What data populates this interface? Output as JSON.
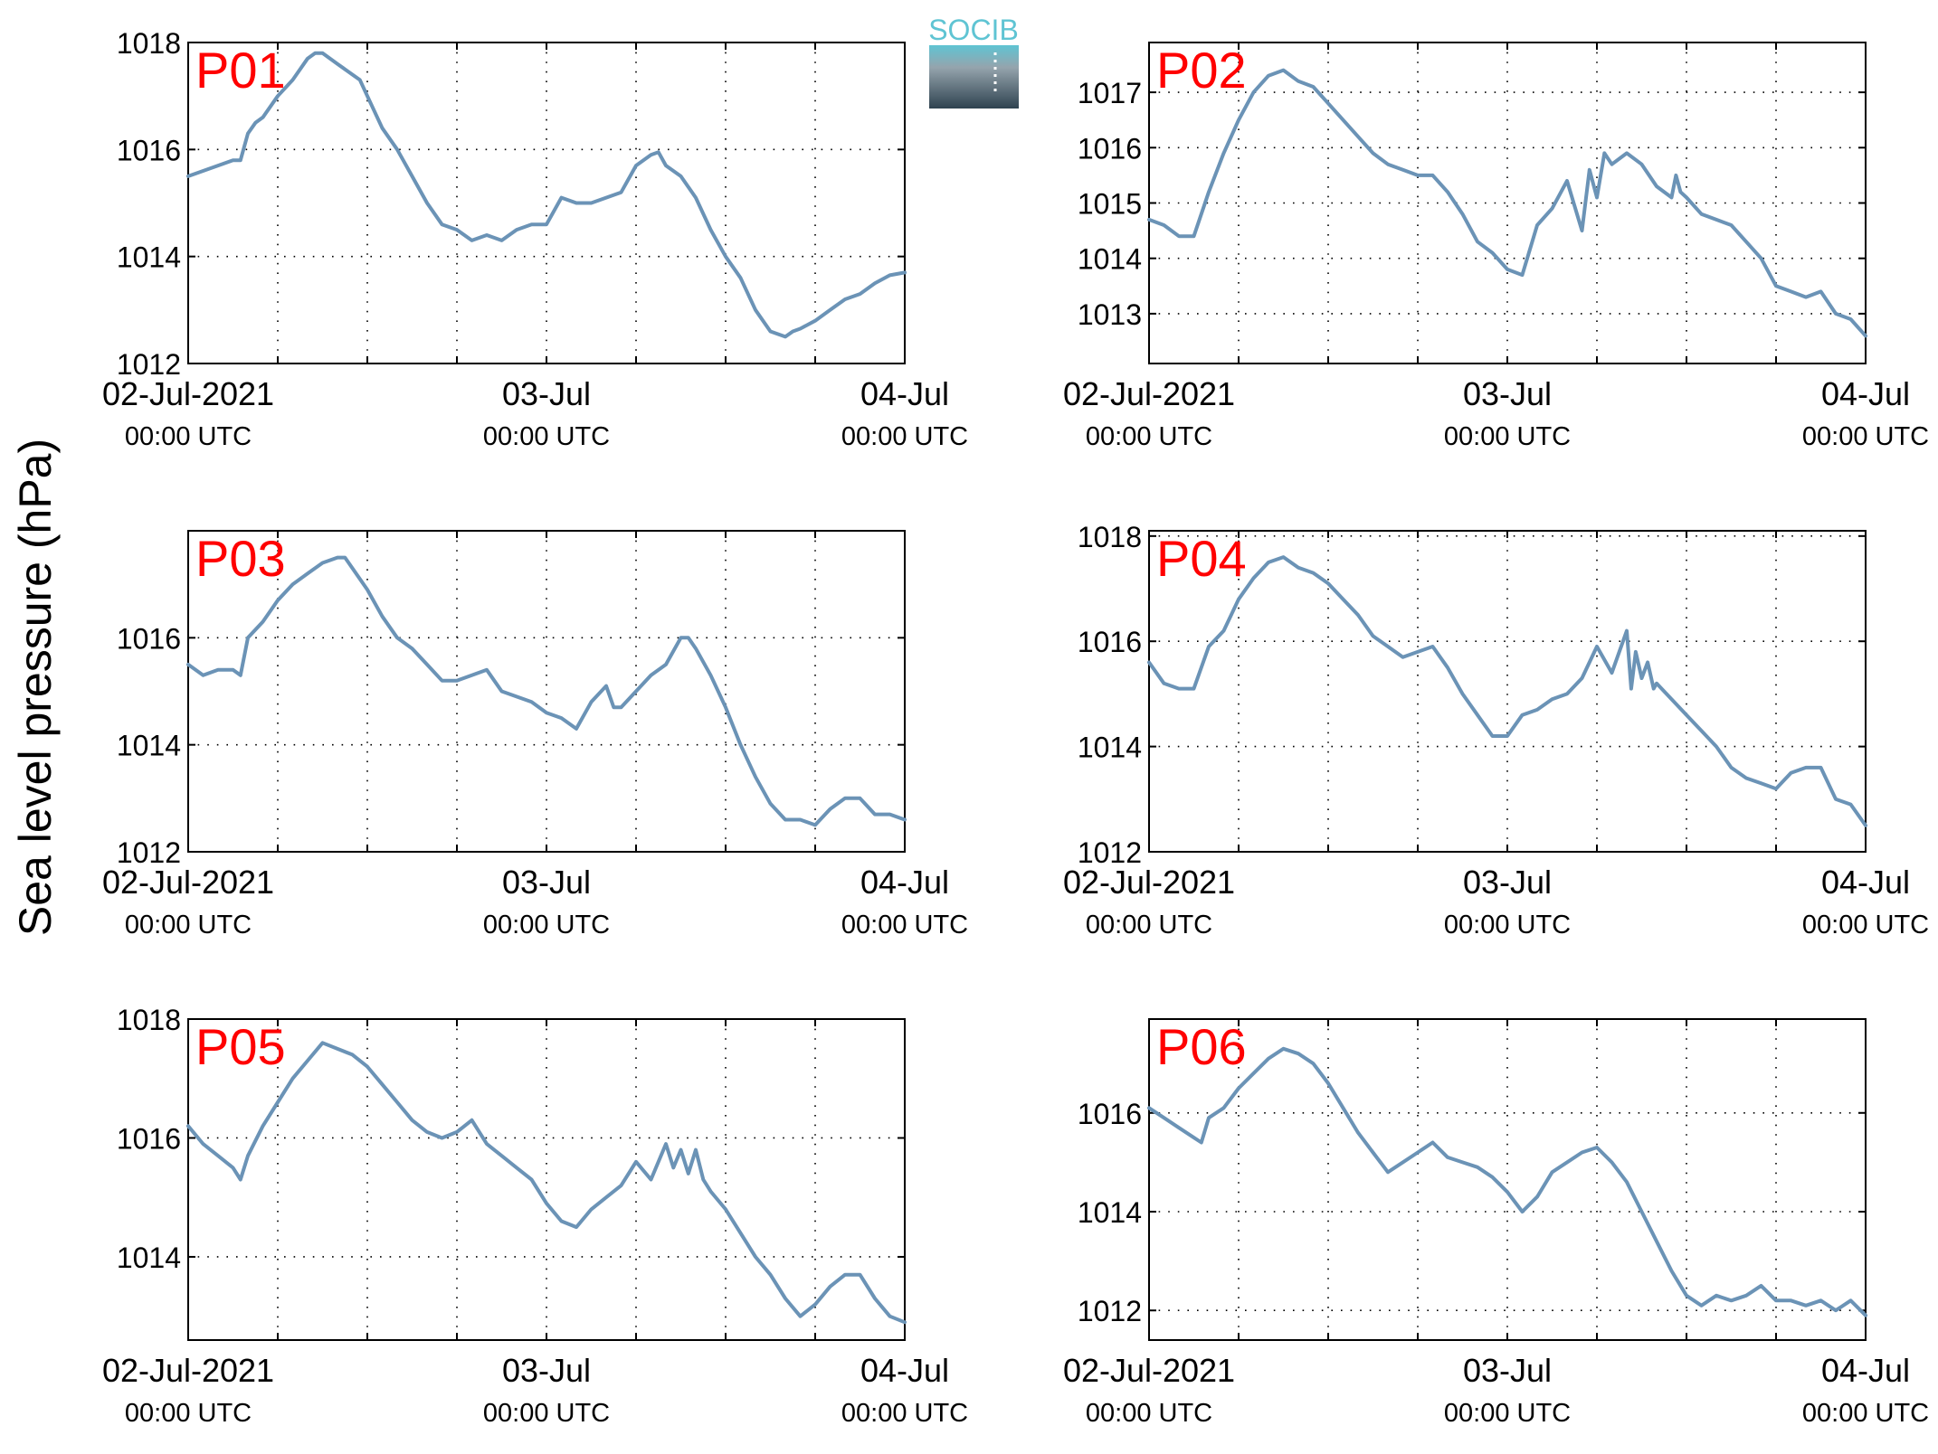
{
  "figure": {
    "ylabel": "Sea level pressure (hPa)",
    "logo_text": "SOCIB"
  },
  "colors": {
    "line": "#6b93b6",
    "panel_label": "#ff0000",
    "logo_top": "#5fc4d3",
    "logo_bottom": "#2f4350"
  },
  "chart_data": [
    {
      "type": "line",
      "panel": "P01",
      "x_unit": "hours since 02-Jul-2021 00:00 UTC",
      "xlim": [
        0,
        48
      ],
      "ylim": [
        1012,
        1018
      ],
      "yticks": [
        1012,
        1014,
        1016,
        1018
      ],
      "xticks": [
        0,
        24,
        48
      ],
      "xtick_labels": [
        [
          "02-Jul-2021",
          "00:00 UTC"
        ],
        [
          "03-Jul",
          "00:00 UTC"
        ],
        [
          "04-Jul",
          "00:00 UTC"
        ]
      ],
      "x": [
        0,
        1,
        2,
        3,
        3.5,
        4,
        4.5,
        5,
        6,
        7,
        8,
        8.5,
        9,
        10,
        11,
        11.5,
        12,
        13,
        14,
        15,
        16,
        17,
        18,
        19,
        20,
        21,
        22,
        23,
        24,
        25,
        26,
        27,
        28,
        29,
        30,
        31,
        31.5,
        32,
        33,
        34,
        35,
        36,
        37,
        38,
        39,
        40,
        40.5,
        41,
        42,
        43,
        44,
        45,
        46,
        47,
        48
      ],
      "y": [
        1015.5,
        1015.6,
        1015.7,
        1015.8,
        1015.8,
        1016.3,
        1016.5,
        1016.6,
        1017.0,
        1017.3,
        1017.7,
        1017.8,
        1017.8,
        1017.6,
        1017.4,
        1017.3,
        1017.0,
        1016.4,
        1016.0,
        1015.5,
        1015.0,
        1014.6,
        1014.5,
        1014.3,
        1014.4,
        1014.3,
        1014.5,
        1014.6,
        1014.6,
        1015.1,
        1015.0,
        1015.0,
        1015.1,
        1015.2,
        1015.7,
        1015.9,
        1015.95,
        1015.7,
        1015.5,
        1015.1,
        1014.5,
        1014.0,
        1013.6,
        1013.0,
        1012.6,
        1012.5,
        1012.6,
        1012.65,
        1012.8,
        1013.0,
        1013.2,
        1013.3,
        1013.5,
        1013.65,
        1013.7
      ]
    },
    {
      "type": "line",
      "panel": "P02",
      "x_unit": "hours since 02-Jul-2021 00:00 UTC",
      "xlim": [
        0,
        48
      ],
      "ylim": [
        1012.1,
        1017.9
      ],
      "yticks": [
        1013,
        1014,
        1015,
        1016,
        1017
      ],
      "xticks": [
        0,
        24,
        48
      ],
      "xtick_labels": [
        [
          "02-Jul-2021",
          "00:00 UTC"
        ],
        [
          "03-Jul",
          "00:00 UTC"
        ],
        [
          "04-Jul",
          "00:00 UTC"
        ]
      ],
      "x": [
        0,
        1,
        2,
        3,
        4,
        5,
        6,
        7,
        8,
        9,
        10,
        11,
        12,
        13,
        14,
        15,
        16,
        17,
        18,
        19,
        20,
        21,
        22,
        23,
        24,
        25,
        26,
        27,
        28,
        29,
        29.5,
        30,
        30.5,
        31,
        31.5,
        32,
        33,
        34,
        35,
        35.3,
        35.6,
        36,
        37,
        38,
        39,
        40,
        41,
        42,
        43,
        44,
        45,
        46,
        47,
        48
      ],
      "y": [
        1014.7,
        1014.6,
        1014.4,
        1014.4,
        1015.2,
        1015.9,
        1016.5,
        1017.0,
        1017.3,
        1017.4,
        1017.2,
        1017.1,
        1016.8,
        1016.5,
        1016.2,
        1015.9,
        1015.7,
        1015.6,
        1015.5,
        1015.5,
        1015.2,
        1014.8,
        1014.3,
        1014.1,
        1013.8,
        1013.7,
        1014.6,
        1014.9,
        1015.4,
        1014.5,
        1015.6,
        1015.1,
        1015.9,
        1015.7,
        1015.8,
        1015.9,
        1015.7,
        1015.3,
        1015.1,
        1015.5,
        1015.2,
        1015.1,
        1014.8,
        1014.7,
        1014.6,
        1014.3,
        1014.0,
        1013.5,
        1013.4,
        1013.3,
        1013.4,
        1013.0,
        1012.9,
        1012.6
      ]
    },
    {
      "type": "line",
      "panel": "P03",
      "x_unit": "hours since 02-Jul-2021 00:00 UTC",
      "xlim": [
        0,
        48
      ],
      "ylim": [
        1012,
        1018
      ],
      "yticks": [
        1012,
        1014,
        1016
      ],
      "xticks": [
        0,
        24,
        48
      ],
      "xtick_labels": [
        [
          "02-Jul-2021",
          "00:00 UTC"
        ],
        [
          "03-Jul",
          "00:00 UTC"
        ],
        [
          "04-Jul",
          "00:00 UTC"
        ]
      ],
      "x": [
        0,
        1,
        2,
        3,
        3.5,
        4,
        5,
        6,
        7,
        8,
        9,
        10,
        10.5,
        11,
        12,
        13,
        14,
        15,
        16,
        17,
        18,
        19,
        20,
        21,
        22,
        23,
        24,
        25,
        26,
        27,
        28,
        28.5,
        29,
        30,
        31,
        32,
        33,
        33.5,
        34,
        35,
        36,
        37,
        38,
        39,
        40,
        41,
        42,
        43,
        44,
        45,
        46,
        47,
        48
      ],
      "y": [
        1015.5,
        1015.3,
        1015.4,
        1015.4,
        1015.3,
        1016.0,
        1016.3,
        1016.7,
        1017.0,
        1017.2,
        1017.4,
        1017.5,
        1017.5,
        1017.3,
        1016.9,
        1016.4,
        1016.0,
        1015.8,
        1015.5,
        1015.2,
        1015.2,
        1015.3,
        1015.4,
        1015.0,
        1014.9,
        1014.8,
        1014.6,
        1014.5,
        1014.3,
        1014.8,
        1015.1,
        1014.7,
        1014.7,
        1015.0,
        1015.3,
        1015.5,
        1016.0,
        1016.0,
        1015.8,
        1015.3,
        1014.7,
        1014.0,
        1013.4,
        1012.9,
        1012.6,
        1012.6,
        1012.5,
        1012.8,
        1013.0,
        1013.0,
        1012.7,
        1012.7,
        1012.6
      ]
    },
    {
      "type": "line",
      "panel": "P04",
      "x_unit": "hours since 02-Jul-2021 00:00 UTC",
      "xlim": [
        0,
        48
      ],
      "ylim": [
        1012,
        1018.1
      ],
      "yticks": [
        1012,
        1014,
        1016,
        1018
      ],
      "xticks": [
        0,
        24,
        48
      ],
      "xtick_labels": [
        [
          "02-Jul-2021",
          "00:00 UTC"
        ],
        [
          "03-Jul",
          "00:00 UTC"
        ],
        [
          "04-Jul",
          "00:00 UTC"
        ]
      ],
      "x": [
        0,
        1,
        2,
        3,
        4,
        5,
        6,
        7,
        8,
        9,
        10,
        11,
        12,
        13,
        14,
        15,
        16,
        17,
        18,
        19,
        20,
        21,
        22,
        23,
        24,
        25,
        26,
        27,
        28,
        29,
        30,
        31,
        32,
        32.3,
        32.6,
        33,
        33.4,
        33.8,
        34,
        35,
        36,
        37,
        38,
        39,
        40,
        41,
        42,
        43,
        44,
        45,
        46,
        47,
        48
      ],
      "y": [
        1015.6,
        1015.2,
        1015.1,
        1015.1,
        1015.9,
        1016.2,
        1016.8,
        1017.2,
        1017.5,
        1017.6,
        1017.4,
        1017.3,
        1017.1,
        1016.8,
        1016.5,
        1016.1,
        1015.9,
        1015.7,
        1015.8,
        1015.9,
        1015.5,
        1015.0,
        1014.6,
        1014.2,
        1014.2,
        1014.6,
        1014.7,
        1014.9,
        1015.0,
        1015.3,
        1015.9,
        1015.4,
        1016.2,
        1015.1,
        1015.8,
        1015.3,
        1015.6,
        1015.1,
        1015.2,
        1014.9,
        1014.6,
        1014.3,
        1014.0,
        1013.6,
        1013.4,
        1013.3,
        1013.2,
        1013.5,
        1013.6,
        1013.6,
        1013.0,
        1012.9,
        1012.5
      ]
    },
    {
      "type": "line",
      "panel": "P05",
      "x_unit": "hours since 02-Jul-2021 00:00 UTC",
      "xlim": [
        0,
        48
      ],
      "ylim": [
        1012.6,
        1018
      ],
      "yticks": [
        1014,
        1016,
        1018
      ],
      "xticks": [
        0,
        24,
        48
      ],
      "xtick_labels": [
        [
          "02-Jul-2021",
          "00:00 UTC"
        ],
        [
          "03-Jul",
          "00:00 UTC"
        ],
        [
          "04-Jul",
          "00:00 UTC"
        ]
      ],
      "x": [
        0,
        1,
        2,
        3,
        3.5,
        4,
        5,
        6,
        7,
        8,
        9,
        10,
        11,
        12,
        13,
        14,
        15,
        16,
        17,
        18,
        19,
        20,
        21,
        22,
        23,
        24,
        25,
        26,
        27,
        28,
        29,
        30,
        31,
        32,
        32.5,
        33,
        33.5,
        34,
        34.5,
        35,
        36,
        37,
        38,
        39,
        40,
        41,
        42,
        43,
        44,
        45,
        46,
        47,
        48
      ],
      "y": [
        1016.2,
        1015.9,
        1015.7,
        1015.5,
        1015.3,
        1015.7,
        1016.2,
        1016.6,
        1017.0,
        1017.3,
        1017.6,
        1017.5,
        1017.4,
        1017.2,
        1016.9,
        1016.6,
        1016.3,
        1016.1,
        1016.0,
        1016.1,
        1016.3,
        1015.9,
        1015.7,
        1015.5,
        1015.3,
        1014.9,
        1014.6,
        1014.5,
        1014.8,
        1015.0,
        1015.2,
        1015.6,
        1015.3,
        1015.9,
        1015.5,
        1015.8,
        1015.4,
        1015.8,
        1015.3,
        1015.1,
        1014.8,
        1014.4,
        1014.0,
        1013.7,
        1013.3,
        1013.0,
        1013.2,
        1013.5,
        1013.7,
        1013.7,
        1013.3,
        1013.0,
        1012.9
      ]
    },
    {
      "type": "line",
      "panel": "P06",
      "x_unit": "hours since 02-Jul-2021 00:00 UTC",
      "xlim": [
        0,
        48
      ],
      "ylim": [
        1011.4,
        1017.9
      ],
      "yticks": [
        1012,
        1014,
        1016
      ],
      "xticks": [
        0,
        24,
        48
      ],
      "xtick_labels": [
        [
          "02-Jul-2021",
          "00:00 UTC"
        ],
        [
          "03-Jul",
          "00:00 UTC"
        ],
        [
          "04-Jul",
          "00:00 UTC"
        ]
      ],
      "x": [
        0,
        1,
        2,
        3,
        3.5,
        4,
        5,
        6,
        7,
        8,
        9,
        10,
        11,
        12,
        13,
        14,
        15,
        16,
        17,
        18,
        19,
        20,
        21,
        22,
        23,
        24,
        25,
        26,
        27,
        28,
        29,
        30,
        31,
        32,
        33,
        34,
        35,
        36,
        37,
        38,
        39,
        40,
        41,
        42,
        43,
        44,
        45,
        46,
        47,
        48
      ],
      "y": [
        1016.1,
        1015.9,
        1015.7,
        1015.5,
        1015.4,
        1015.9,
        1016.1,
        1016.5,
        1016.8,
        1017.1,
        1017.3,
        1017.2,
        1017.0,
        1016.6,
        1016.1,
        1015.6,
        1015.2,
        1014.8,
        1015.0,
        1015.2,
        1015.4,
        1015.1,
        1015.0,
        1014.9,
        1014.7,
        1014.4,
        1014.0,
        1014.3,
        1014.8,
        1015.0,
        1015.2,
        1015.3,
        1015.0,
        1014.6,
        1014.0,
        1013.4,
        1012.8,
        1012.3,
        1012.1,
        1012.3,
        1012.2,
        1012.3,
        1012.5,
        1012.2,
        1012.2,
        1012.1,
        1012.2,
        1012.0,
        1012.2,
        1011.9
      ]
    }
  ]
}
